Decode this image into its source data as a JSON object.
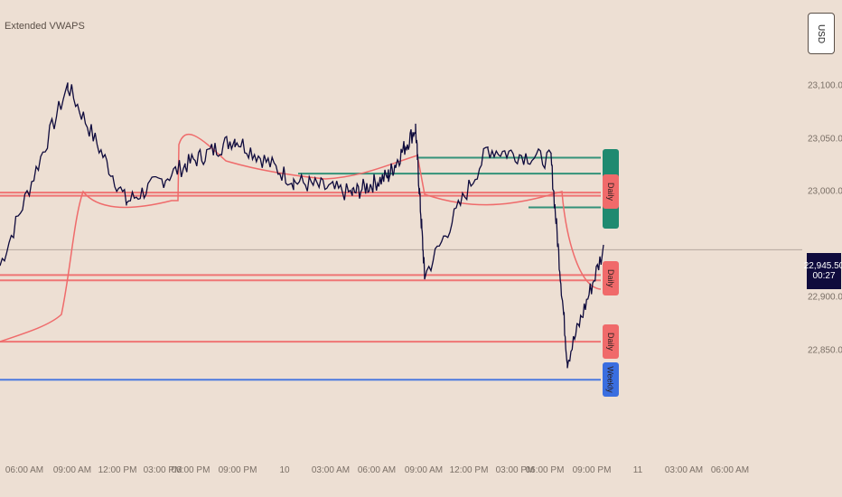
{
  "indicator": {
    "title": "Extended VWAPS"
  },
  "currency": "USD",
  "current_price": {
    "price": "22,945.50",
    "countdown": "00:27"
  },
  "price_axis": {
    "ticks": [
      {
        "label": "23,100.00",
        "value": 23100
      },
      {
        "label": "23,050.00",
        "value": 23050
      },
      {
        "label": "23,000.00",
        "value": 23000
      },
      {
        "label": "22,900.00",
        "value": 22900
      },
      {
        "label": "22,850.00",
        "value": 22850
      }
    ]
  },
  "time_axis": {
    "ticks": [
      "06:00 AM",
      "09:00 AM",
      "12:00 PM",
      "03:00 PM",
      "06:00 PM",
      "09:00 PM",
      "10",
      "03:00 AM",
      "06:00 AM",
      "09:00 AM",
      "12:00 PM",
      "03:00 PM",
      "06:00 PM",
      "09:00 PM",
      "11",
      "03:00 AM",
      "06:00 AM"
    ]
  },
  "colors": {
    "price_line": "#0f0b3d",
    "vwap_line": "#ef6b6b",
    "daily_level": "#f06a6a",
    "teal_level": "#1f8a70",
    "weekly_level": "#3a6ee0",
    "gridline": "#9c9089"
  },
  "level_badges": [
    {
      "label": "Daily",
      "color": "#f06a6a",
      "price": 23000
    },
    {
      "label": "Daily",
      "color": "#f06a6a",
      "price": 22918
    },
    {
      "label": "Daily",
      "color": "#f06a6a",
      "price": 22858
    },
    {
      "label": "Weekly",
      "color": "#3a6ee0",
      "price": 22822
    }
  ],
  "chart_data": {
    "type": "line",
    "title": "Extended VWAPS",
    "ylabel": "USD",
    "ylim": [
      22810,
      23135
    ],
    "x": [
      "06:00 AM",
      "09:00 AM",
      "12:00 PM",
      "03:00 PM",
      "06:00 PM",
      "09:00 PM",
      "10",
      "03:00 AM",
      "06:00 AM",
      "09:00 AM",
      "12:00 PM",
      "03:00 PM",
      "06:00 PM",
      "09:00 PM"
    ],
    "series": [
      {
        "values": [
          22930,
          23100,
          22990,
          23025,
          23050,
          23010,
          22998,
          23015,
          23060,
          22920,
          23040,
          23030,
          22840,
          22945
        ]
      }
    ],
    "levels": [
      {
        "price": 22996,
        "color": "#f06a6a"
      },
      {
        "price": 22999,
        "color": "#f06a6a"
      },
      {
        "price": 22921,
        "color": "#f06a6a"
      },
      {
        "price": 22916,
        "color": "#f06a6a"
      },
      {
        "price": 22858,
        "color": "#f06a6a"
      },
      {
        "price": 22822,
        "color": "#3a6ee0"
      },
      {
        "price": 23032,
        "color": "#1f8a70"
      },
      {
        "price": 23017,
        "color": "#1f8a70"
      },
      {
        "price": 22985,
        "color": "#1f8a70"
      },
      {
        "price": 22945,
        "color": "#9c9089"
      }
    ]
  }
}
